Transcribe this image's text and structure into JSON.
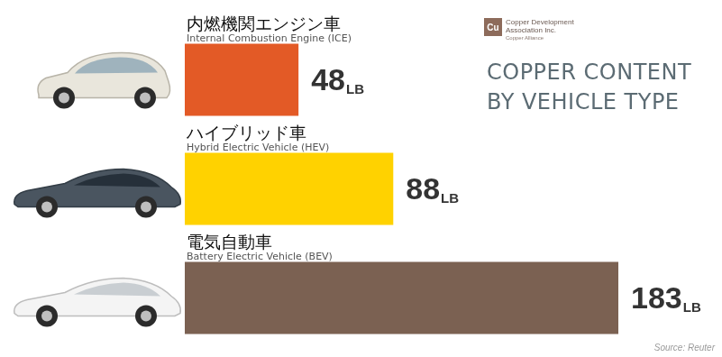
{
  "chart_data": {
    "type": "bar",
    "orientation": "horizontal",
    "title": "COPPER CONTENT BY VEHICLE TYPE",
    "categories": [
      "内燃機関エンジン車",
      "ハイブリッド車",
      "電気自動車"
    ],
    "category_labels_en": [
      "Internal Combustion Engine (ICE)",
      "Hybrid Electric Vehicle (HEV)",
      "Battery Electric Vehicle (BEV)"
    ],
    "values": [
      48,
      88,
      183
    ],
    "value_labels": [
      "48LB",
      "88LB",
      "183LB"
    ],
    "colors": [
      "#e35a26",
      "#ffd200",
      "#7b6152"
    ],
    "data_labels": true,
    "xlim": [
      0,
      183
    ],
    "grid": false,
    "tick_labels": false,
    "logo": {
      "symbol": "Cu",
      "name": "Copper Development Association Inc.",
      "tagline": "Copper Alliance"
    },
    "source": "Source: Reuter"
  }
}
